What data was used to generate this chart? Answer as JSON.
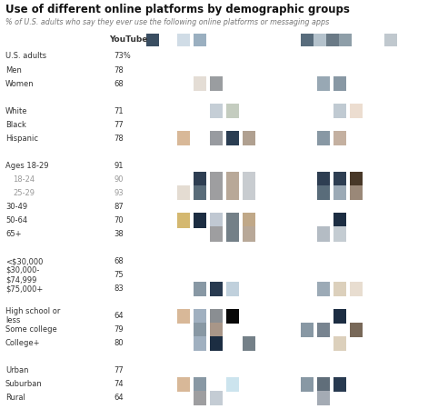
{
  "title": "Use of different online platforms by demographic groups",
  "subtitle": "% of U.S. adults who say they ever use the following online platforms or messaging apps",
  "youtube_label": "YouTube",
  "categories": [
    "U.S. adults",
    "Men",
    "Women",
    "",
    "White",
    "Black",
    "Hispanic",
    "",
    "Ages 18-29",
    "18-24",
    "25-29",
    "30-49",
    "50-64",
    "65+",
    "",
    "<$30,000",
    "$30,000-\n$74,999",
    "$75,000+",
    "",
    "High school or\nless",
    "Some college",
    "College+",
    "",
    "Urban",
    "Suburban",
    "Rural"
  ],
  "youtube_pct": [
    73,
    78,
    68,
    null,
    71,
    77,
    78,
    null,
    91,
    90,
    93,
    87,
    70,
    38,
    null,
    68,
    75,
    83,
    null,
    64,
    79,
    80,
    null,
    77,
    74,
    64
  ],
  "is_subcat": [
    false,
    false,
    false,
    false,
    false,
    false,
    false,
    false,
    false,
    true,
    true,
    false,
    false,
    false,
    false,
    false,
    false,
    false,
    false,
    false,
    false,
    false,
    false,
    false,
    false,
    false
  ],
  "background_color": "#ffffff",
  "text_color": "#333333",
  "subcat_color": "#999999",
  "header_squares": [
    {
      "col": 0,
      "color": "#3d5068"
    },
    {
      "col": 1,
      "color": "#d4dde6"
    },
    {
      "col": 2,
      "color": "#9fb3c0"
    },
    {
      "col": 6,
      "color": "#5c6e7e"
    },
    {
      "col": 6,
      "color": "#b8c5ce"
    },
    {
      "col": 7,
      "color": "#6b7b87"
    },
    {
      "col": 8,
      "color": "#8e9ea8"
    },
    {
      "col": 9,
      "color": "#c0c8ce"
    }
  ],
  "squares": {
    "Women": [
      {
        "col": 2,
        "color": "#e4ddd5"
      },
      {
        "col": 3,
        "color": "#9a9da0"
      },
      {
        "col": 7,
        "color": "#98a8b4"
      },
      {
        "col": 8,
        "color": "#8898a4"
      }
    ],
    "White": [
      {
        "col": 3,
        "color": "#c5ced6"
      },
      {
        "col": 4,
        "color": "#c4ccbf"
      },
      {
        "col": 8,
        "color": "#c0cad2"
      },
      {
        "col": 9,
        "color": "#ecddd0"
      }
    ],
    "Hispanic": [
      {
        "col": 1,
        "color": "#d8b898"
      },
      {
        "col": 3,
        "color": "#989ba0"
      },
      {
        "col": 4,
        "color": "#2a3d52"
      },
      {
        "col": 5,
        "color": "#b0a090"
      },
      {
        "col": 7,
        "color": "#8898a4"
      },
      {
        "col": 8,
        "color": "#c4b0a0"
      }
    ],
    "18-24": [
      {
        "col": 2,
        "color": "#2e3e52"
      },
      {
        "col": 3,
        "color": "#9e9ea0"
      },
      {
        "col": 4,
        "color": "#b8a898"
      },
      {
        "col": 5,
        "color": "#c8ccd0"
      },
      {
        "col": 7,
        "color": "#2e3e52"
      },
      {
        "col": 8,
        "color": "#2e3e52"
      },
      {
        "col": 9,
        "color": "#483828"
      }
    ],
    "25-29": [
      {
        "col": 1,
        "color": "#e4dcd2"
      },
      {
        "col": 2,
        "color": "#596c7a"
      },
      {
        "col": 3,
        "color": "#9e9ea0"
      },
      {
        "col": 4,
        "color": "#b8a898"
      },
      {
        "col": 5,
        "color": "#c8ccd0"
      },
      {
        "col": 7,
        "color": "#596c7a"
      },
      {
        "col": 8,
        "color": "#9caab6"
      },
      {
        "col": 9,
        "color": "#9a8878"
      }
    ],
    "50-64": [
      {
        "col": 1,
        "color": "#d4b870"
      },
      {
        "col": 2,
        "color": "#1c2d42"
      },
      {
        "col": 3,
        "color": "#c0c8d2"
      },
      {
        "col": 4,
        "color": "#748088"
      },
      {
        "col": 5,
        "color": "#c0a888"
      },
      {
        "col": 8,
        "color": "#1c2d42"
      }
    ],
    "65+": [
      {
        "col": 3,
        "color": "#9e9ea0"
      },
      {
        "col": 4,
        "color": "#748088"
      },
      {
        "col": 5,
        "color": "#b8a898"
      },
      {
        "col": 7,
        "color": "#b4bcc4"
      },
      {
        "col": 8,
        "color": "#c4ccd2"
      }
    ],
    "$75,000+": [
      {
        "col": 2,
        "color": "#8898a4"
      },
      {
        "col": 3,
        "color": "#283a50"
      },
      {
        "col": 4,
        "color": "#c0d0dc"
      },
      {
        "col": 7,
        "color": "#9caab6"
      },
      {
        "col": 8,
        "color": "#dcd0bc"
      },
      {
        "col": 9,
        "color": "#e8ddd0"
      }
    ],
    "High school or\nless": [
      {
        "col": 1,
        "color": "#d8b898"
      },
      {
        "col": 2,
        "color": "#a0b0c0"
      },
      {
        "col": 3,
        "color": "#8a8e92"
      },
      {
        "col": 4,
        "color": "#080808"
      },
      {
        "col": 8,
        "color": "#1c2d42"
      }
    ],
    "Some college": [
      {
        "col": 2,
        "color": "#8898a4"
      },
      {
        "col": 3,
        "color": "#a89688"
      },
      {
        "col": 6,
        "color": "#8898a4"
      },
      {
        "col": 7,
        "color": "#788490"
      },
      {
        "col": 9,
        "color": "#786858"
      }
    ],
    "College+": [
      {
        "col": 2,
        "color": "#a0b0c0"
      },
      {
        "col": 3,
        "color": "#1c2d42"
      },
      {
        "col": 5,
        "color": "#748088"
      },
      {
        "col": 8,
        "color": "#dcd0bc"
      }
    ],
    "Suburban": [
      {
        "col": 1,
        "color": "#d8b898"
      },
      {
        "col": 2,
        "color": "#8898a4"
      },
      {
        "col": 4,
        "color": "#cce4ee"
      },
      {
        "col": 6,
        "color": "#8898a4"
      },
      {
        "col": 7,
        "color": "#606e7a"
      },
      {
        "col": 8,
        "color": "#283a50"
      }
    ],
    "Rural": [
      {
        "col": 2,
        "color": "#9e9ea0"
      },
      {
        "col": 3,
        "color": "#c4ccd4"
      },
      {
        "col": 7,
        "color": "#a4abb4"
      }
    ]
  }
}
